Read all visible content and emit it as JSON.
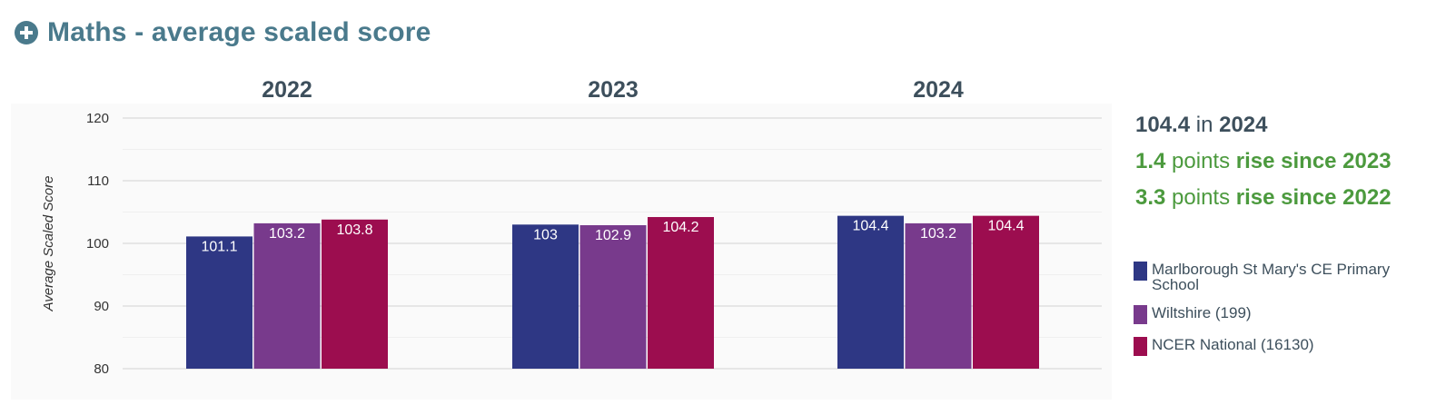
{
  "header": {
    "title": "Maths - average scaled score",
    "expand_icon": "plus-circle-icon"
  },
  "summary": {
    "latest_value": "104.4",
    "latest_in": "in",
    "latest_year": "2024",
    "change1_value": "1.4",
    "change1_points": "points",
    "change1_text": "rise since 2023",
    "change2_value": "3.3",
    "change2_points": "points",
    "change2_text": "rise since 2022"
  },
  "legend": [
    {
      "label": "Marlborough St Mary's CE Primary School",
      "color": "#2e3784"
    },
    {
      "label": "Wiltshire (199)",
      "color": "#783a8c"
    },
    {
      "label": "NCER National (16130)",
      "color": "#9c0d4f"
    }
  ],
  "chart_data": {
    "type": "bar",
    "categories": [
      "2022",
      "2023",
      "2024"
    ],
    "series": [
      {
        "name": "Marlborough St Mary's CE Primary School",
        "values": [
          101.1,
          103,
          104.4
        ],
        "labels": [
          "101.1",
          "103",
          "104.4"
        ],
        "color": "#2e3784"
      },
      {
        "name": "Wiltshire (199)",
        "values": [
          103.2,
          102.9,
          103.2
        ],
        "labels": [
          "103.2",
          "102.9",
          "103.2"
        ],
        "color": "#783a8c"
      },
      {
        "name": "NCER National (16130)",
        "values": [
          103.8,
          104.2,
          104.4
        ],
        "labels": [
          "103.8",
          "104.2",
          "104.4"
        ],
        "color": "#9c0d4f"
      }
    ],
    "ylabel": "Average Scaled Score",
    "ylim": [
      80,
      120
    ],
    "yticks": [
      "80",
      "90",
      "100",
      "110",
      "120"
    ],
    "grid": true,
    "legend_position": "right"
  }
}
